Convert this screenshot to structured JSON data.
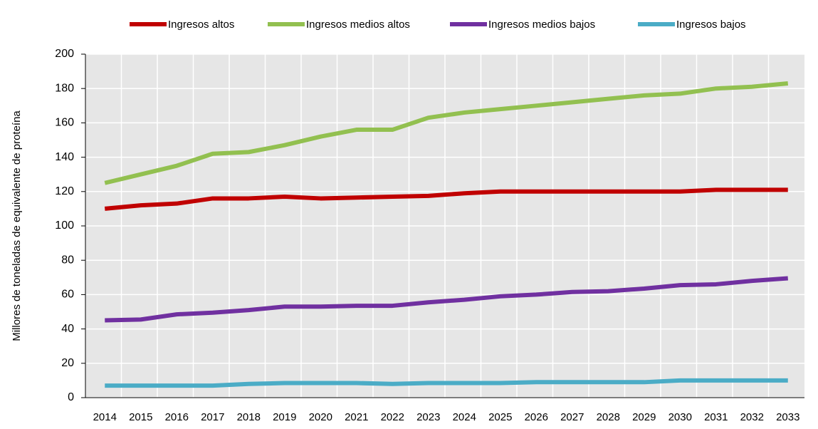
{
  "chart_data": {
    "type": "line",
    "y_label": "Millores de toneladas de equivalente de proteína",
    "categories": [
      "2014",
      "2015",
      "2016",
      "2017",
      "2018",
      "2019",
      "2020",
      "2021",
      "2022",
      "2023",
      "2024",
      "2025",
      "2026",
      "2027",
      "2028",
      "2029",
      "2030",
      "2031",
      "2032",
      "2033"
    ],
    "series": [
      {
        "name": "Ingresos altos",
        "color": "#c00000",
        "values": [
          110,
          112,
          113,
          116,
          116,
          117,
          116,
          116.5,
          117,
          117.5,
          119,
          120,
          120,
          120,
          120,
          120,
          120,
          121,
          121,
          121
        ]
      },
      {
        "name": "Ingresos medios altos",
        "color": "#92c050",
        "values": [
          125,
          130,
          135,
          142,
          143,
          147,
          152,
          156,
          156,
          163,
          166,
          168,
          170,
          172,
          174,
          176,
          177,
          180,
          181,
          183
        ]
      },
      {
        "name": "Ingresos medios bajos",
        "color": "#7030a0",
        "values": [
          45,
          45.5,
          48.5,
          49.5,
          51,
          53,
          53,
          53.5,
          53.5,
          55.5,
          57,
          59,
          60,
          61.5,
          62,
          63.5,
          65.5,
          66,
          68,
          69.5
        ]
      },
      {
        "name": "Ingresos bajos",
        "color": "#4bacc6",
        "values": [
          7,
          7,
          7,
          7,
          8,
          8.5,
          8.5,
          8.5,
          8,
          8.5,
          8.5,
          8.5,
          9,
          9,
          9,
          9,
          10,
          10,
          10,
          10
        ]
      }
    ],
    "ylim": [
      0,
      200
    ],
    "yticks": [
      0,
      20,
      40,
      60,
      80,
      100,
      120,
      140,
      160,
      180,
      200
    ],
    "grid": true,
    "legend": "top"
  }
}
